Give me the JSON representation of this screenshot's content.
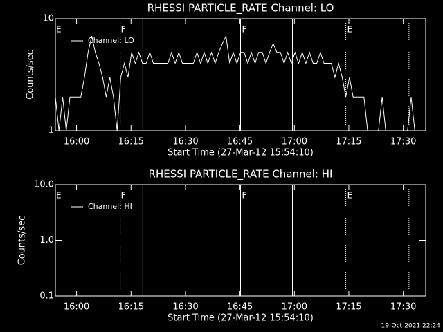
{
  "chart_data": [
    {
      "type": "line",
      "title": "RHESSI PARTICLE_RATE Channel: LO",
      "xlabel": "Start Time (27-Mar-12 15:54:10)",
      "ylabel": "Counts/sec",
      "log_y": true,
      "legend": "upper left",
      "x": [
        0,
        1,
        2,
        3,
        4,
        5,
        6,
        7,
        8,
        9,
        10,
        11,
        12,
        13,
        14,
        15,
        16,
        17,
        18,
        19,
        20,
        21,
        22,
        23,
        24,
        25,
        26,
        27,
        28,
        29,
        30,
        31,
        32,
        33,
        34,
        35,
        36,
        37,
        38,
        39,
        40,
        41,
        42,
        43,
        44,
        45,
        46,
        47,
        48,
        49,
        50,
        51,
        52,
        53,
        54,
        55,
        56,
        57,
        58,
        59,
        60,
        61,
        62,
        63,
        64,
        65,
        66,
        67,
        68,
        69,
        70,
        71,
        72,
        73,
        74,
        75,
        76,
        77,
        78,
        79,
        80,
        81,
        82,
        83,
        84,
        85,
        86,
        87,
        88,
        89,
        90,
        91,
        92,
        93,
        94,
        95,
        96,
        97,
        98,
        99,
        100,
        101
      ],
      "series": [
        {
          "name": "Channel: LO",
          "color": "#ffffff",
          "values": [
            2,
            1,
            2,
            1,
            2,
            2,
            2,
            2,
            3,
            5,
            7,
            5,
            4,
            3,
            2,
            3,
            2,
            1,
            3,
            4,
            3,
            5,
            4,
            5,
            4,
            4,
            5,
            4,
            4,
            4,
            4,
            4,
            5,
            4,
            5,
            4,
            4,
            4,
            4,
            5,
            4,
            5,
            4,
            5,
            4,
            5,
            6,
            7,
            4,
            5,
            4,
            5,
            5,
            4,
            5,
            4,
            5,
            5,
            4,
            5,
            6,
            5,
            5,
            4,
            5,
            4,
            5,
            4,
            5,
            4,
            5,
            4,
            4,
            5,
            4,
            4,
            4,
            3,
            4,
            3,
            2,
            3,
            2,
            2,
            2,
            2,
            1,
            1,
            1,
            1,
            2,
            1,
            1,
            1,
            1,
            1,
            1,
            1,
            2,
            1,
            1,
            1
          ]
        }
      ],
      "xlim": [
        0,
        102
      ],
      "ylim": [
        1,
        10
      ],
      "xticks": [
        {
          "value": 5.83,
          "label": "16:00"
        },
        {
          "value": 20.83,
          "label": "16:15"
        },
        {
          "value": 35.83,
          "label": "16:30"
        },
        {
          "value": 50.83,
          "label": "16:45"
        },
        {
          "value": 65.83,
          "label": "17:00"
        },
        {
          "value": 80.83,
          "label": "17:15"
        },
        {
          "value": 95.83,
          "label": "17:30"
        }
      ],
      "yticks": [
        1,
        10
      ],
      "vlines": [
        {
          "x": 17.85,
          "style": "dotted"
        },
        {
          "x": 24.1,
          "style": "solid"
        },
        {
          "x": 51.0,
          "style": "solid"
        },
        {
          "x": 65.3,
          "style": "solid"
        },
        {
          "x": 80.0,
          "style": "dotted"
        },
        {
          "x": 97.4,
          "style": "dotted"
        }
      ],
      "annotations": [
        {
          "text": "E",
          "x": 0
        },
        {
          "text": "F",
          "x": 17.85
        },
        {
          "text": "F",
          "x": 51.2
        },
        {
          "text": "E",
          "x": 80.2
        }
      ]
    },
    {
      "type": "line",
      "title": "RHESSI PARTICLE_RATE Channel: HI",
      "xlabel": "Start Time (27-Mar-12 15:54:10)",
      "ylabel": "Counts/sec",
      "log_y": true,
      "legend": "upper left",
      "x": [],
      "series": [
        {
          "name": "Channel: HI",
          "color": "#ffffff",
          "values": []
        }
      ],
      "xlim": [
        0,
        102
      ],
      "ylim": [
        0.1,
        10
      ],
      "xticks": [
        {
          "value": 5.83,
          "label": "16:00"
        },
        {
          "value": 20.83,
          "label": "16:15"
        },
        {
          "value": 35.83,
          "label": "16:30"
        },
        {
          "value": 50.83,
          "label": "16:45"
        },
        {
          "value": 65.83,
          "label": "17:00"
        },
        {
          "value": 80.83,
          "label": "17:15"
        },
        {
          "value": 95.83,
          "label": "17:30"
        }
      ],
      "yticks": [
        0.1,
        {
          "value": 1,
          "label": "1.0"
        },
        {
          "value": 10,
          "label": "10.0"
        }
      ],
      "vlines": [
        {
          "x": 17.85,
          "style": "dotted"
        },
        {
          "x": 24.1,
          "style": "solid"
        },
        {
          "x": 51.0,
          "style": "solid"
        },
        {
          "x": 65.3,
          "style": "solid"
        },
        {
          "x": 80.0,
          "style": "dotted"
        },
        {
          "x": 97.4,
          "style": "dotted"
        }
      ],
      "annotations": [
        {
          "text": "E",
          "x": 0
        },
        {
          "text": "F",
          "x": 17.85
        },
        {
          "text": "F",
          "x": 51.2
        },
        {
          "text": "E",
          "x": 80.2
        }
      ]
    }
  ],
  "footer": "19-Oct-2021 22:24"
}
